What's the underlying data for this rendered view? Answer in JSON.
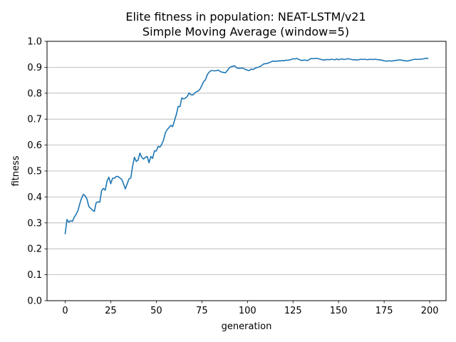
{
  "chart_data": {
    "type": "line",
    "title": "Elite fitness in population: NEAT-LSTM/v21",
    "subtitle": "Simple Moving Average (window=5)",
    "xlabel": "generation",
    "ylabel": "fitness",
    "xlim": [
      -9.95,
      208.95
    ],
    "ylim": [
      0.0,
      1.0
    ],
    "xticks": [
      0,
      25,
      50,
      75,
      100,
      125,
      150,
      175,
      200
    ],
    "yticks": [
      0.0,
      0.1,
      0.2,
      0.3,
      0.4,
      0.5,
      0.6,
      0.7,
      0.8,
      0.9,
      1.0
    ],
    "ytick_labels": [
      "0.0",
      "0.1",
      "0.2",
      "0.3",
      "0.4",
      "0.5",
      "0.6",
      "0.7",
      "0.8",
      "0.9",
      "1.0"
    ],
    "grid": "y-major",
    "color": "#1f77b4",
    "series": [
      {
        "points": [
          [
            0,
            0.258
          ],
          [
            1,
            0.313
          ],
          [
            2,
            0.303
          ],
          [
            3,
            0.308
          ],
          [
            4,
            0.306
          ],
          [
            5,
            0.322
          ],
          [
            6,
            0.333
          ],
          [
            7,
            0.347
          ],
          [
            8,
            0.373
          ],
          [
            9,
            0.395
          ],
          [
            10,
            0.41
          ],
          [
            11,
            0.404
          ],
          [
            12,
            0.391
          ],
          [
            13,
            0.363
          ],
          [
            14,
            0.356
          ],
          [
            15,
            0.349
          ],
          [
            16,
            0.344
          ],
          [
            17,
            0.378
          ],
          [
            18,
            0.381
          ],
          [
            19,
            0.38
          ],
          [
            20,
            0.424
          ],
          [
            21,
            0.433
          ],
          [
            22,
            0.426
          ],
          [
            23,
            0.462
          ],
          [
            24,
            0.476
          ],
          [
            25,
            0.451
          ],
          [
            26,
            0.472
          ],
          [
            27,
            0.472
          ],
          [
            28,
            0.479
          ],
          [
            29,
            0.479
          ],
          [
            30,
            0.473
          ],
          [
            31,
            0.468
          ],
          [
            32,
            0.451
          ],
          [
            33,
            0.431
          ],
          [
            34,
            0.45
          ],
          [
            35,
            0.469
          ],
          [
            36,
            0.473
          ],
          [
            37,
            0.519
          ],
          [
            38,
            0.553
          ],
          [
            39,
            0.537
          ],
          [
            40,
            0.542
          ],
          [
            41,
            0.569
          ],
          [
            42,
            0.553
          ],
          [
            43,
            0.546
          ],
          [
            44,
            0.553
          ],
          [
            45,
            0.556
          ],
          [
            46,
            0.532
          ],
          [
            47,
            0.556
          ],
          [
            48,
            0.549
          ],
          [
            49,
            0.578
          ],
          [
            50,
            0.577
          ],
          [
            51,
            0.595
          ],
          [
            52,
            0.592
          ],
          [
            53,
            0.603
          ],
          [
            54,
            0.62
          ],
          [
            55,
            0.648
          ],
          [
            56,
            0.66
          ],
          [
            57,
            0.668
          ],
          [
            58,
            0.676
          ],
          [
            59,
            0.671
          ],
          [
            60,
            0.695
          ],
          [
            61,
            0.718
          ],
          [
            62,
            0.749
          ],
          [
            63,
            0.748
          ],
          [
            64,
            0.782
          ],
          [
            65,
            0.778
          ],
          [
            66,
            0.781
          ],
          [
            67,
            0.788
          ],
          [
            68,
            0.801
          ],
          [
            69,
            0.794
          ],
          [
            70,
            0.793
          ],
          [
            71,
            0.8
          ],
          [
            72,
            0.806
          ],
          [
            73,
            0.808
          ],
          [
            74,
            0.816
          ],
          [
            75,
            0.83
          ],
          [
            76,
            0.845
          ],
          [
            77,
            0.852
          ],
          [
            78,
            0.872
          ],
          [
            79,
            0.881
          ],
          [
            80,
            0.887
          ],
          [
            81,
            0.887
          ],
          [
            82,
            0.886
          ],
          [
            83,
            0.887
          ],
          [
            84,
            0.889
          ],
          [
            85,
            0.884
          ],
          [
            86,
            0.881
          ],
          [
            87,
            0.88
          ],
          [
            88,
            0.879
          ],
          [
            89,
            0.888
          ],
          [
            90,
            0.897
          ],
          [
            91,
            0.902
          ],
          [
            92,
            0.904
          ],
          [
            93,
            0.906
          ],
          [
            94,
            0.898
          ],
          [
            95,
            0.896
          ],
          [
            96,
            0.896
          ],
          [
            97,
            0.897
          ],
          [
            98,
            0.895
          ],
          [
            99,
            0.891
          ],
          [
            100,
            0.889
          ],
          [
            101,
            0.887
          ],
          [
            102,
            0.893
          ],
          [
            103,
            0.891
          ],
          [
            104,
            0.895
          ],
          [
            105,
            0.899
          ],
          [
            106,
            0.9
          ],
          [
            107,
            0.903
          ],
          [
            108,
            0.908
          ],
          [
            109,
            0.913
          ],
          [
            110,
            0.914
          ],
          [
            111,
            0.915
          ],
          [
            112,
            0.918
          ],
          [
            113,
            0.921
          ],
          [
            114,
            0.924
          ],
          [
            115,
            0.923
          ],
          [
            116,
            0.923
          ],
          [
            117,
            0.925
          ],
          [
            118,
            0.924
          ],
          [
            119,
            0.926
          ],
          [
            120,
            0.925
          ],
          [
            121,
            0.927
          ],
          [
            122,
            0.927
          ],
          [
            123,
            0.928
          ],
          [
            124,
            0.93
          ],
          [
            125,
            0.933
          ],
          [
            126,
            0.932
          ],
          [
            127,
            0.934
          ],
          [
            128,
            0.931
          ],
          [
            129,
            0.928
          ],
          [
            130,
            0.926
          ],
          [
            131,
            0.928
          ],
          [
            132,
            0.927
          ],
          [
            133,
            0.926
          ],
          [
            134,
            0.93
          ],
          [
            135,
            0.934
          ],
          [
            136,
            0.933
          ],
          [
            137,
            0.934
          ],
          [
            138,
            0.934
          ],
          [
            139,
            0.933
          ],
          [
            140,
            0.931
          ],
          [
            141,
            0.929
          ],
          [
            142,
            0.928
          ],
          [
            143,
            0.929
          ],
          [
            144,
            0.93
          ],
          [
            145,
            0.929
          ],
          [
            146,
            0.931
          ],
          [
            147,
            0.93
          ],
          [
            148,
            0.929
          ],
          [
            149,
            0.932
          ],
          [
            150,
            0.929
          ],
          [
            151,
            0.931
          ],
          [
            152,
            0.932
          ],
          [
            153,
            0.93
          ],
          [
            154,
            0.931
          ],
          [
            155,
            0.933
          ],
          [
            156,
            0.932
          ],
          [
            157,
            0.93
          ],
          [
            158,
            0.929
          ],
          [
            159,
            0.929
          ],
          [
            160,
            0.928
          ],
          [
            161,
            0.929
          ],
          [
            162,
            0.931
          ],
          [
            163,
            0.93
          ],
          [
            164,
            0.931
          ],
          [
            165,
            0.93
          ],
          [
            166,
            0.929
          ],
          [
            167,
            0.931
          ],
          [
            168,
            0.93
          ],
          [
            169,
            0.93
          ],
          [
            170,
            0.931
          ],
          [
            171,
            0.93
          ],
          [
            172,
            0.929
          ],
          [
            173,
            0.928
          ],
          [
            174,
            0.927
          ],
          [
            175,
            0.925
          ],
          [
            176,
            0.924
          ],
          [
            177,
            0.924
          ],
          [
            178,
            0.925
          ],
          [
            179,
            0.924
          ],
          [
            180,
            0.925
          ],
          [
            181,
            0.926
          ],
          [
            182,
            0.927
          ],
          [
            183,
            0.928
          ],
          [
            184,
            0.928
          ],
          [
            185,
            0.927
          ],
          [
            186,
            0.925
          ],
          [
            187,
            0.925
          ],
          [
            188,
            0.924
          ],
          [
            189,
            0.926
          ],
          [
            190,
            0.928
          ],
          [
            191,
            0.93
          ],
          [
            192,
            0.931
          ],
          [
            193,
            0.93
          ],
          [
            194,
            0.931
          ],
          [
            195,
            0.931
          ],
          [
            196,
            0.932
          ],
          [
            197,
            0.933
          ],
          [
            198,
            0.935
          ],
          [
            199,
            0.934
          ]
        ]
      }
    ]
  }
}
